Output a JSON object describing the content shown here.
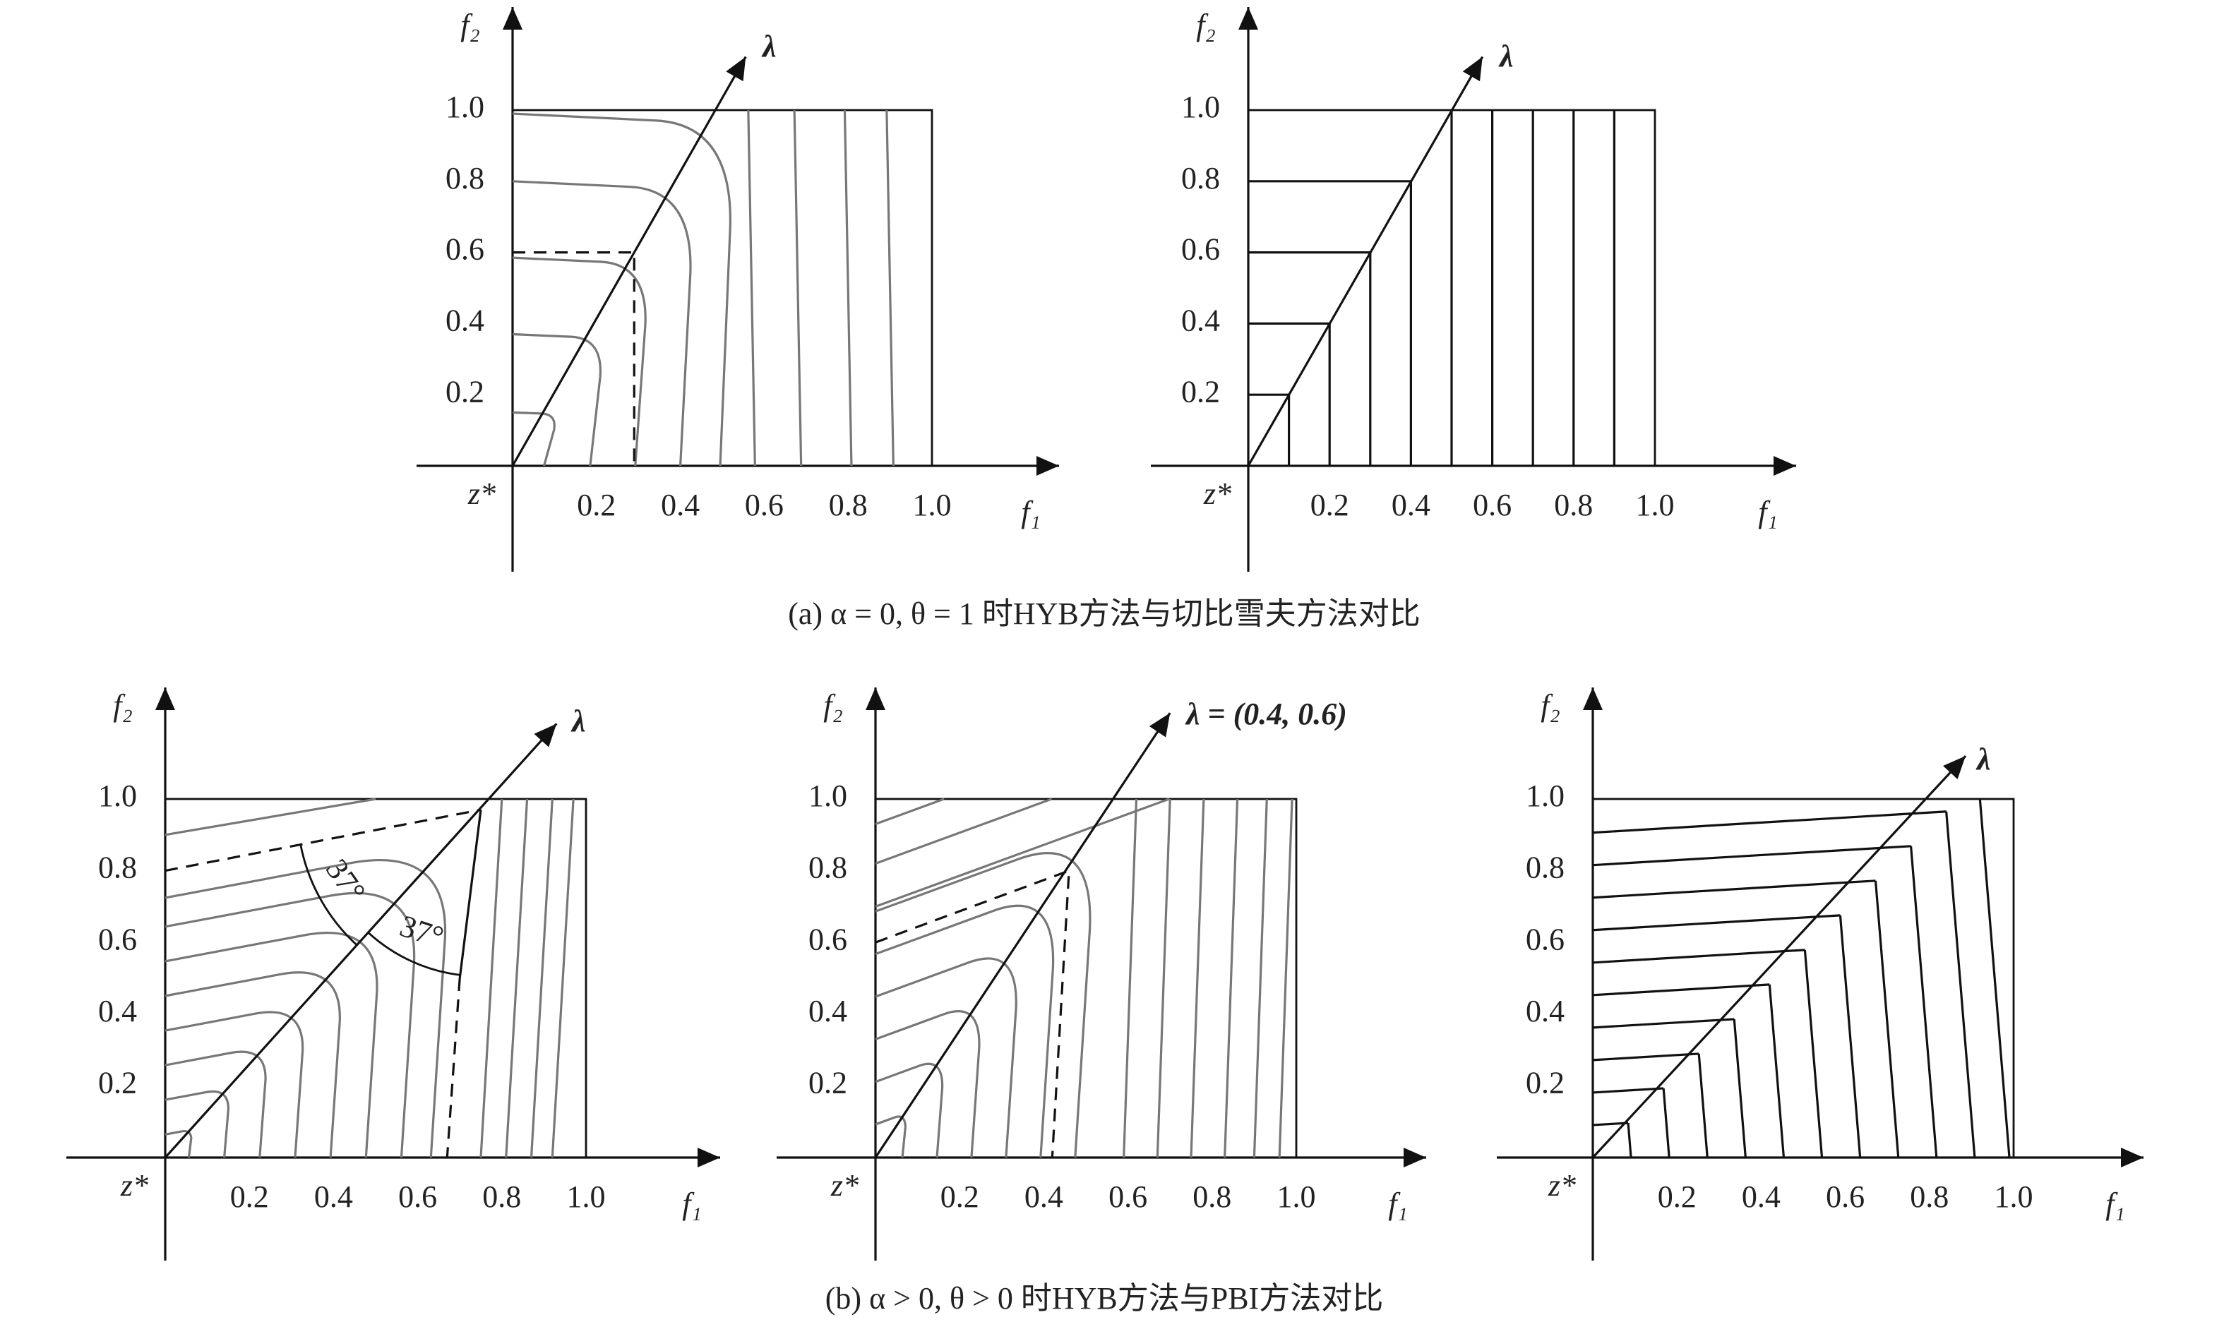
{
  "panels": [
    {
      "y_axis": "f₂",
      "x_axis": "f₁",
      "origin": "z*",
      "direction": "λ",
      "x_ticks": [
        "0.2",
        "0.4",
        "0.6",
        "0.8",
        "1.0"
      ],
      "y_ticks": [
        "0.2",
        "0.4",
        "0.6",
        "0.8",
        "1.0"
      ]
    },
    {
      "y_axis": "f₂",
      "x_axis": "f₁",
      "origin": "z*",
      "direction": "λ",
      "x_ticks": [
        "0.2",
        "0.4",
        "0.6",
        "0.8",
        "1.0"
      ],
      "y_ticks": [
        "0.2",
        "0.4",
        "0.6",
        "0.8",
        "1.0"
      ]
    },
    {
      "y_axis": "f₂",
      "x_axis": "f₁",
      "origin": "z*",
      "direction": "λ",
      "x_ticks": [
        "0.2",
        "0.4",
        "0.6",
        "0.8",
        "1.0"
      ],
      "y_ticks": [
        "0.2",
        "0.4",
        "0.6",
        "0.8",
        "1.0"
      ]
    },
    {
      "y_axis": "f₂",
      "x_axis": "f₁",
      "origin": "z*",
      "direction": "λ = (0.4, 0.6)",
      "x_ticks": [
        "0.2",
        "0.4",
        "0.6",
        "0.8",
        "1.0"
      ],
      "y_ticks": [
        "0.2",
        "0.4",
        "0.6",
        "0.8",
        "1.0"
      ]
    },
    {
      "y_axis": "f₂",
      "x_axis": "f₁",
      "origin": "z*",
      "direction": "λ",
      "x_ticks": [
        "0.2",
        "0.4",
        "0.6",
        "0.8",
        "1.0"
      ],
      "y_ticks": [
        "0.2",
        "0.4",
        "0.6",
        "0.8",
        "1.0"
      ]
    }
  ],
  "angles": [
    "37°",
    "37°"
  ],
  "captions": [
    "(a) α = 0, θ = 1 时HYB方法与切比雪夫方法对比",
    "(b) α > 0, θ > 0 时HYB方法与PBI方法对比"
  ]
}
